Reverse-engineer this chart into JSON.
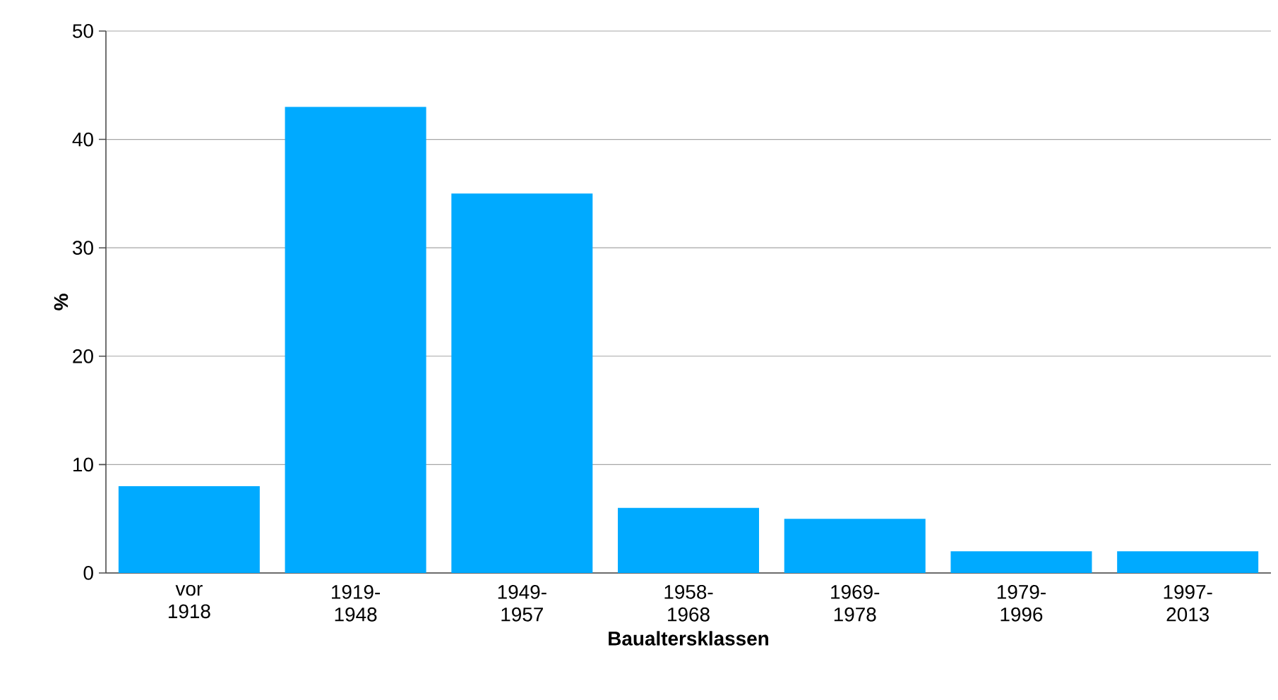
{
  "chart_data": {
    "type": "bar",
    "xlabel": "Baualtersklassen",
    "ylabel": "%",
    "categories": [
      "vor 1918",
      "1919-1948",
      "1949-1957",
      "1958-1968",
      "1969-1978",
      "1979-1996",
      "1997-2013"
    ],
    "values": [
      8,
      43,
      35,
      6,
      5,
      2,
      2
    ],
    "color": "#00aaff",
    "ylim": [
      0,
      50
    ],
    "yticks": [
      0,
      10,
      20,
      30,
      40,
      50
    ],
    "grid": "y"
  }
}
